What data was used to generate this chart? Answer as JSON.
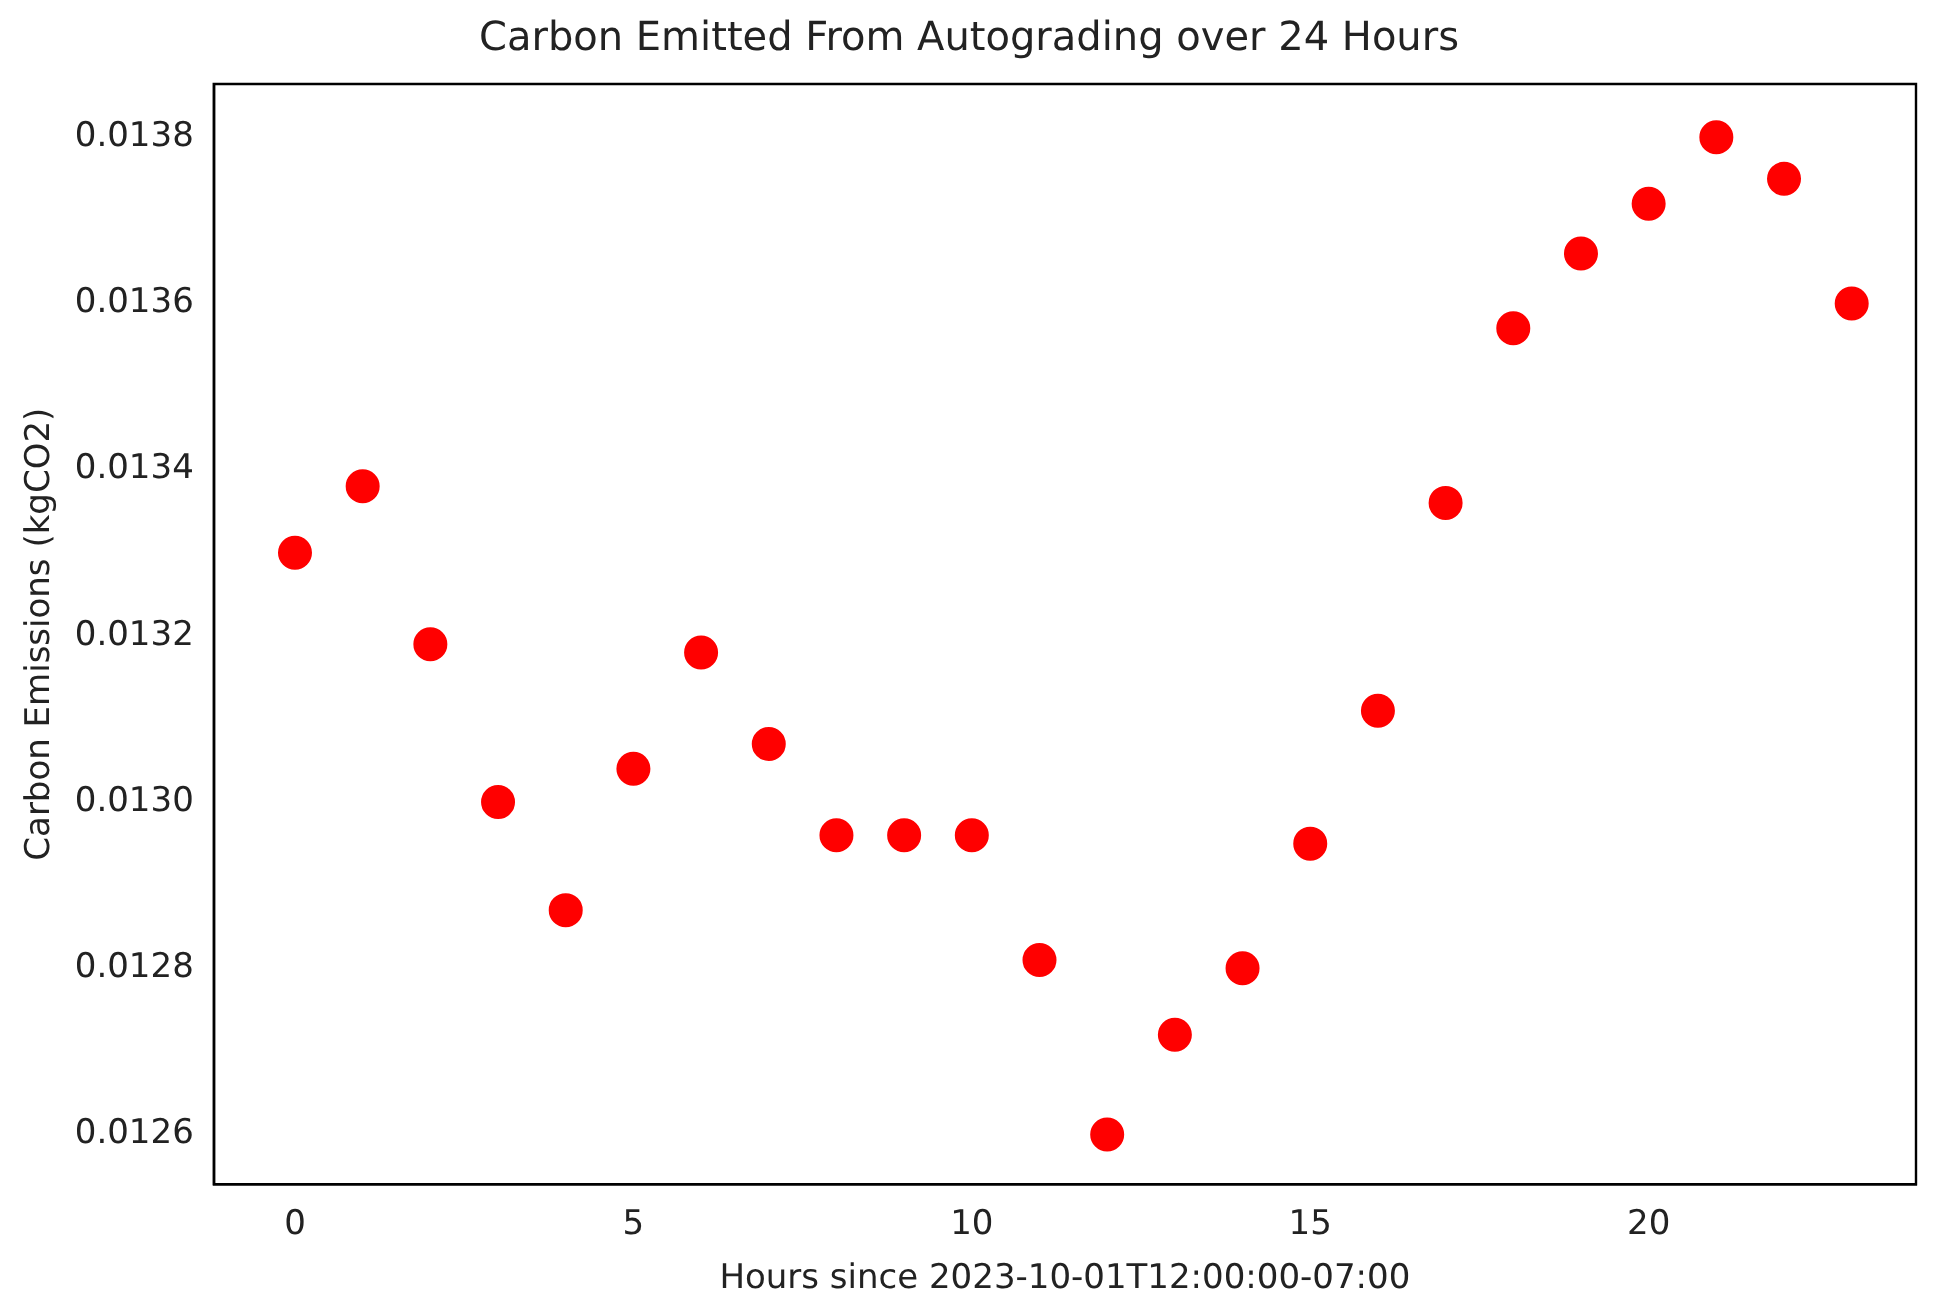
{
  "chart_data": {
    "type": "scatter",
    "title": "Carbon Emitted From Autograding over 24 Hours",
    "xlabel": "Hours since 2023-10-01T12:00:00-07:00",
    "ylabel": "Carbon Emissions (kgCO2)",
    "x": [
      0,
      1,
      2,
      3,
      4,
      5,
      6,
      7,
      8,
      9,
      10,
      11,
      12,
      13,
      14,
      15,
      16,
      17,
      18,
      19,
      20,
      21,
      22,
      23
    ],
    "series": [
      {
        "color": "#ff0000",
        "values": [
          0.0133,
          0.01338,
          0.01319,
          0.013,
          0.01287,
          0.01304,
          0.01318,
          0.01307,
          0.01296,
          0.01296,
          0.01296,
          0.01281,
          0.0126,
          0.01272,
          0.0128,
          0.01295,
          0.01311,
          0.01336,
          0.01357,
          0.01366,
          0.01372,
          0.0138,
          0.01375,
          0.0136
        ]
      }
    ],
    "xlim": [
      -1.2,
      23.95
    ],
    "xticks": [
      0,
      5,
      10,
      15,
      20
    ],
    "ylim": [
      0.01254,
      0.013864
    ],
    "yticks": [
      {
        "value": 0.0126,
        "label": "0.0126"
      },
      {
        "value": 0.0128,
        "label": "0.0128"
      },
      {
        "value": 0.013,
        "label": "0.0130"
      },
      {
        "value": 0.0132,
        "label": "0.0132"
      },
      {
        "value": 0.0134,
        "label": "0.0134"
      },
      {
        "value": 0.0136,
        "label": "0.0136"
      },
      {
        "value": 0.0138,
        "label": "0.0138"
      }
    ],
    "marker": "circle",
    "grid": false,
    "legend": false
  }
}
